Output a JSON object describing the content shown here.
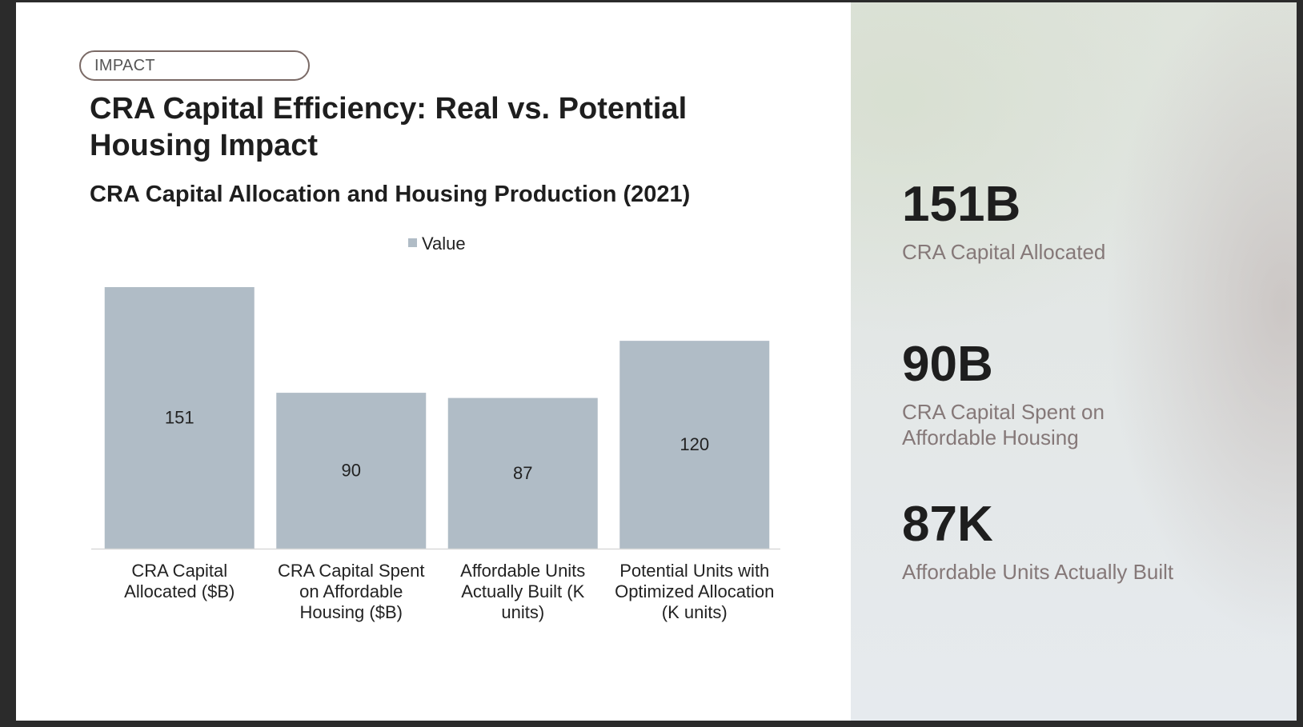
{
  "tag": "IMPACT",
  "title": "CRA Capital Efficiency: Real vs. Potential Housing Impact",
  "colors": {
    "bar": "#b0bcc6",
    "axis": "#d9d9d9",
    "label": "#222222",
    "stat_label": "#857878"
  },
  "chart_data": {
    "type": "bar",
    "title": "CRA Capital Allocation and Housing Production (2021)",
    "categories": [
      [
        "CRA Capital",
        "Allocated ($B)"
      ],
      [
        "CRA Capital Spent",
        "on Affordable",
        "Housing ($B)"
      ],
      [
        "Affordable Units",
        "Actually Built (K",
        "units)"
      ],
      [
        "Potential Units with",
        "Optimized Allocation",
        "(K units)"
      ]
    ],
    "series": [
      {
        "name": "Value",
        "values": [
          151,
          90,
          87,
          120
        ]
      }
    ],
    "ylim": [
      0,
      151
    ],
    "legend": "top-center",
    "data_labels": true,
    "grid": false
  },
  "stats": [
    {
      "value": "151B",
      "label": "CRA Capital Allocated"
    },
    {
      "value": "90B",
      "label": "CRA Capital Spent on Affordable Housing"
    },
    {
      "value": "87K",
      "label": "Affordable Units Actually Built"
    }
  ]
}
